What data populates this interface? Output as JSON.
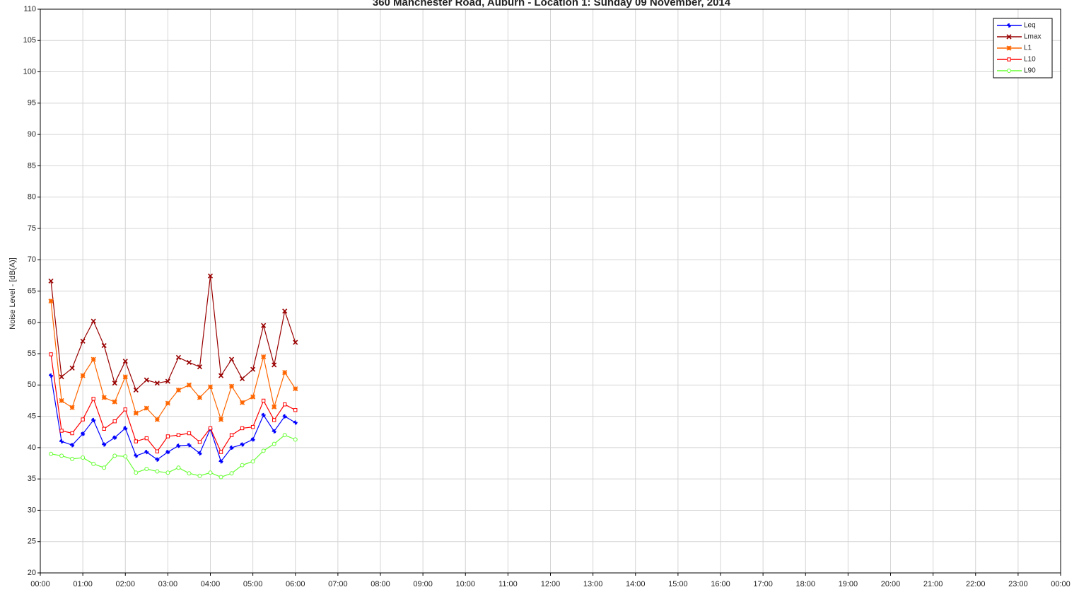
{
  "chart_data": {
    "type": "line",
    "title": "360 Manchester Road, Auburn - Location 1: Sunday 09 November, 2014",
    "y_label": "Noise Level - [dB(A)]",
    "x": [
      0.25,
      0.5,
      0.75,
      1,
      1.25,
      1.5,
      1.75,
      2,
      2.25,
      2.5,
      2.75,
      3,
      3.25,
      3.5,
      3.75,
      4,
      4.25,
      4.5,
      4.75,
      5,
      5.25,
      5.5,
      5.75,
      6
    ],
    "xlim": [
      0,
      24
    ],
    "xticks": [
      {
        "value": 0,
        "label": "00:00"
      },
      {
        "value": 1,
        "label": "01:00"
      },
      {
        "value": 2,
        "label": "02:00"
      },
      {
        "value": 3,
        "label": "03:00"
      },
      {
        "value": 4,
        "label": "04:00"
      },
      {
        "value": 5,
        "label": "05:00"
      },
      {
        "value": 6,
        "label": "06:00"
      },
      {
        "value": 7,
        "label": "07:00"
      },
      {
        "value": 8,
        "label": "08:00"
      },
      {
        "value": 9,
        "label": "09:00"
      },
      {
        "value": 10,
        "label": "10:00"
      },
      {
        "value": 11,
        "label": "11:00"
      },
      {
        "value": 12,
        "label": "12:00"
      },
      {
        "value": 13,
        "label": "13:00"
      },
      {
        "value": 14,
        "label": "14:00"
      },
      {
        "value": 15,
        "label": "15:00"
      },
      {
        "value": 16,
        "label": "16:00"
      },
      {
        "value": 17,
        "label": "17:00"
      },
      {
        "value": 18,
        "label": "18:00"
      },
      {
        "value": 19,
        "label": "19:00"
      },
      {
        "value": 20,
        "label": "20:00"
      },
      {
        "value": 21,
        "label": "21:00"
      },
      {
        "value": 22,
        "label": "22:00"
      },
      {
        "value": 23,
        "label": "23:00"
      },
      {
        "value": 24,
        "label": "00:00"
      }
    ],
    "ylim": [
      20,
      110
    ],
    "yticks": [
      20,
      25,
      30,
      35,
      40,
      45,
      50,
      55,
      60,
      65,
      70,
      75,
      80,
      85,
      90,
      95,
      100,
      105,
      110
    ],
    "grid": true,
    "legend": "top-right",
    "series": [
      {
        "name": "Leq",
        "color": "#0000ff",
        "values": [
          51.5,
          41,
          40.4,
          42.2,
          44.4,
          40.5,
          41.6,
          43.1,
          38.7,
          39.3,
          38.1,
          39.3,
          40.3,
          40.4,
          39.1,
          43,
          37.8,
          40,
          40.5,
          41.3,
          45.2,
          42.6,
          45,
          44
        ]
      },
      {
        "name": "Lmax",
        "color": "#990000",
        "values": [
          66.6,
          51.3,
          52.7,
          57,
          60.2,
          56.3,
          50.3,
          53.8,
          49.2,
          50.8,
          50.3,
          50.6,
          54.4,
          53.6,
          52.9,
          67.4,
          51.5,
          54.1,
          51,
          52.5,
          59.5,
          53.2,
          61.8,
          56.8
        ]
      },
      {
        "name": "L1",
        "color": "#ff6600",
        "values": [
          63.4,
          47.5,
          46.4,
          51.5,
          54.1,
          48,
          47.3,
          51.3,
          45.5,
          46.3,
          44.5,
          47.1,
          49.2,
          50,
          48,
          49.7,
          44.5,
          49.8,
          47.2,
          48.1,
          54.5,
          46.5,
          52,
          49.4
        ]
      },
      {
        "name": "L10",
        "color": "#ff0000",
        "values": [
          54.9,
          42.7,
          42.3,
          44.5,
          47.8,
          43,
          44.2,
          46.1,
          41,
          41.5,
          39.4,
          41.8,
          42,
          42.3,
          40.9,
          43.1,
          39.3,
          42,
          43.1,
          43.3,
          47.5,
          44.4,
          46.9,
          46
        ]
      },
      {
        "name": "L90",
        "color": "#66ff33",
        "values": [
          39,
          38.7,
          38.2,
          38.4,
          37.4,
          36.8,
          38.7,
          38.6,
          36,
          36.6,
          36.2,
          36,
          36.8,
          35.9,
          35.5,
          36,
          35.3,
          35.9,
          37.2,
          37.8,
          39.5,
          40.6,
          42,
          41.3
        ]
      }
    ]
  }
}
